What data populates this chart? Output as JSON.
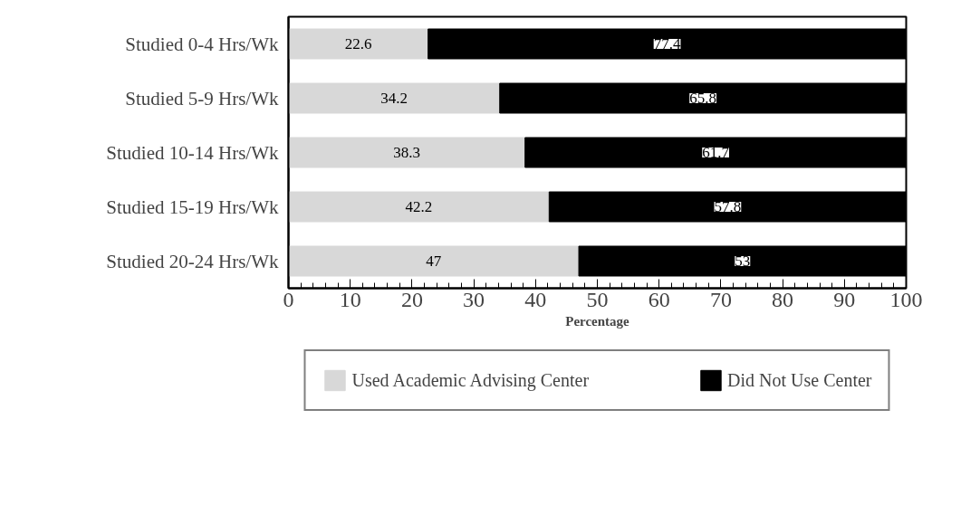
{
  "chart_data": {
    "type": "bar",
    "orientation": "horizontal",
    "stacked": true,
    "categories": [
      "Studied 0-4 Hrs/Wk",
      "Studied 5-9 Hrs/Wk",
      "Studied 10-14 Hrs/Wk",
      "Studied 15-19 Hrs/Wk",
      "Studied 20-24 Hrs/Wk"
    ],
    "series": [
      {
        "name": "Used Academic Advising Center",
        "color": "#d8d8d8",
        "values": [
          22.6,
          34.2,
          38.3,
          42.2,
          47
        ]
      },
      {
        "name": "Did Not Use Center",
        "color": "#000000",
        "values": [
          77.4,
          65.8,
          61.7,
          57.8,
          53
        ]
      }
    ],
    "xlabel": "Percentage",
    "xlim": [
      0,
      100
    ],
    "xticks": [
      0,
      10,
      20,
      30,
      40,
      50,
      60,
      70,
      80,
      90,
      100
    ],
    "data_labels": true,
    "grid": false,
    "legend": "bottom"
  }
}
